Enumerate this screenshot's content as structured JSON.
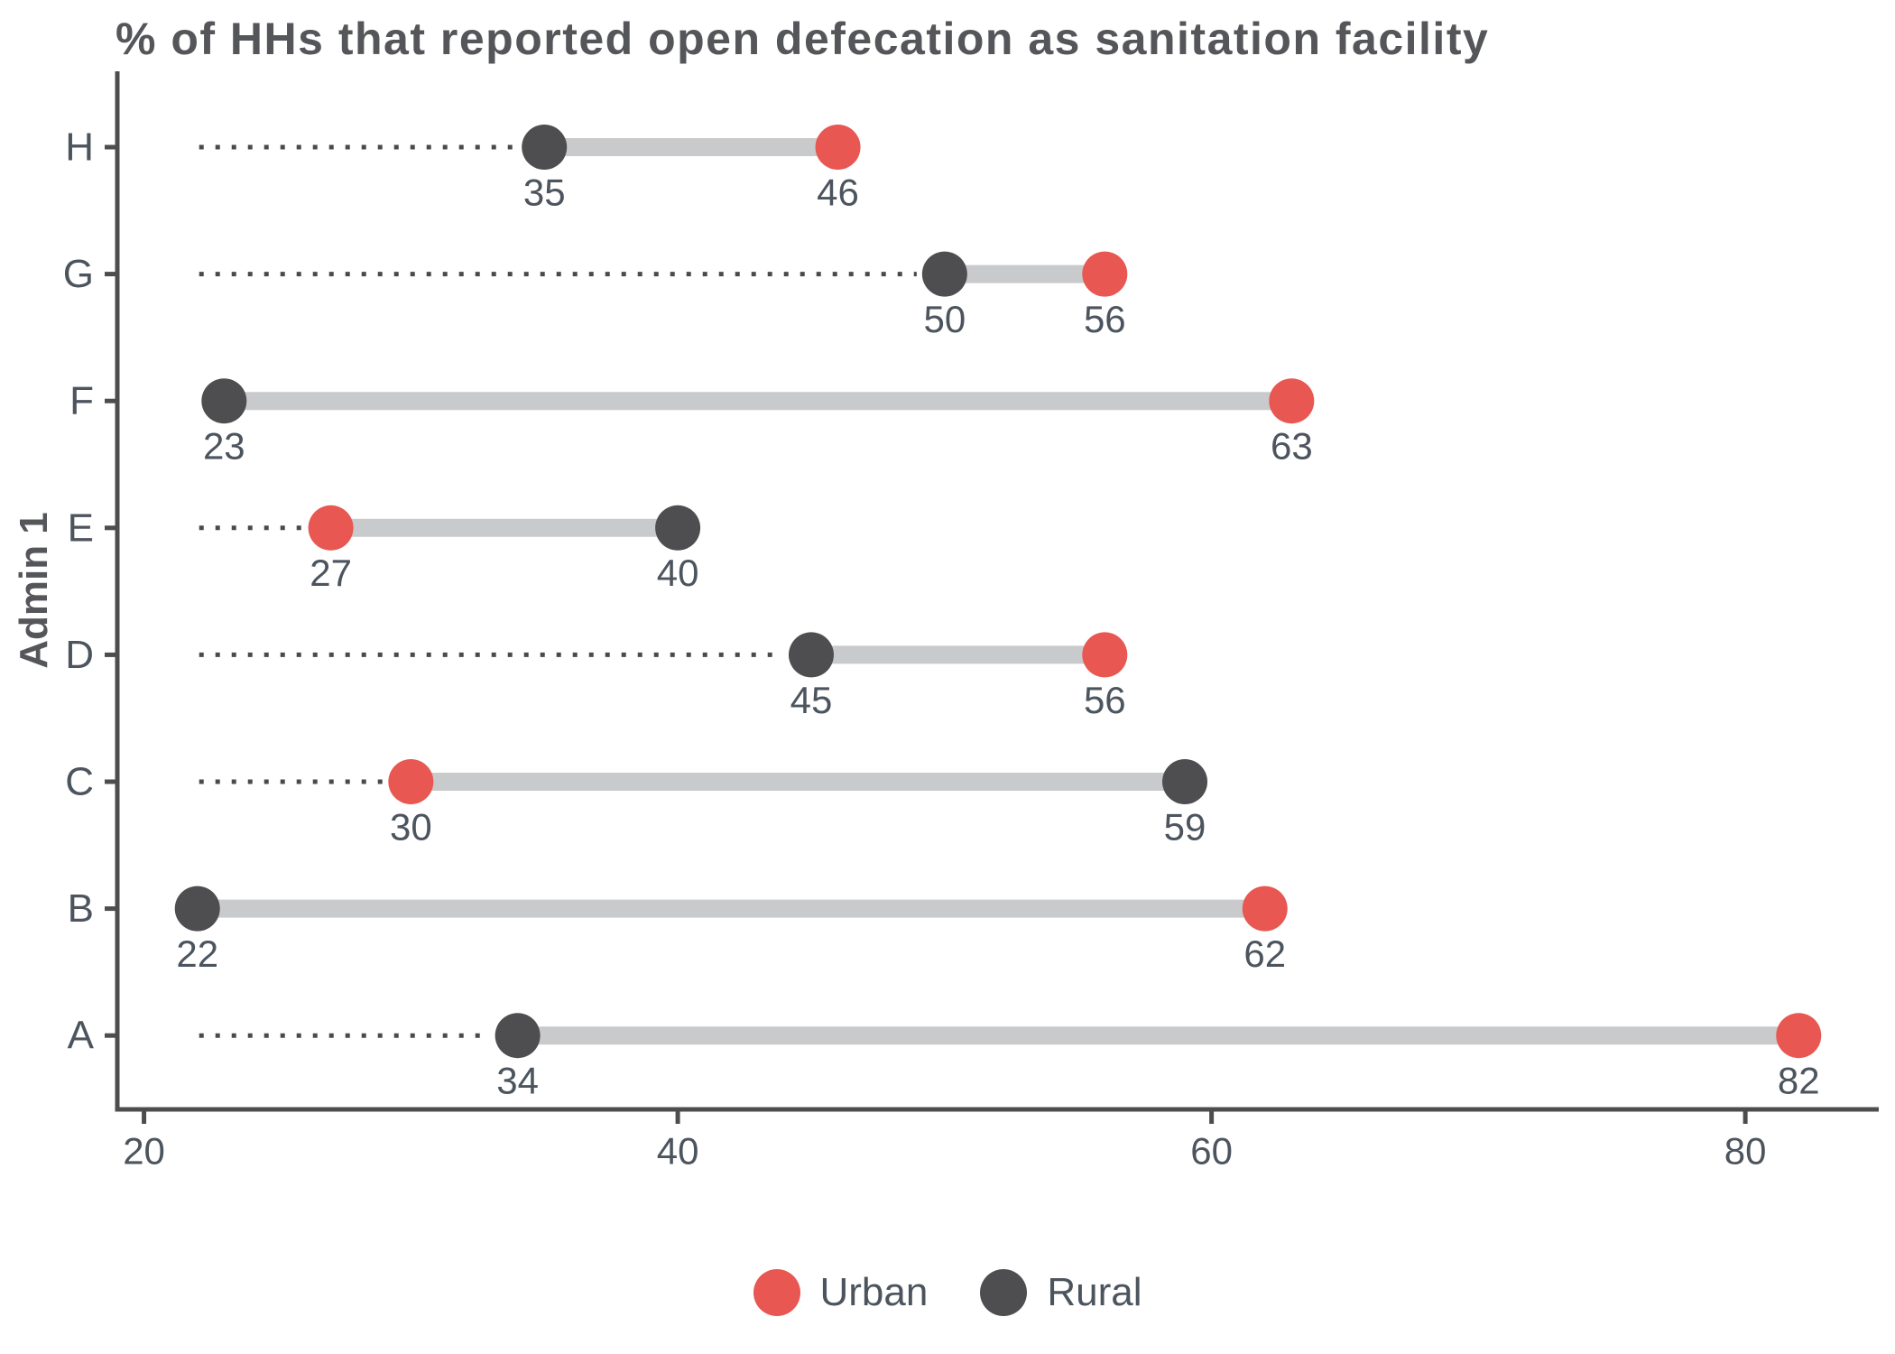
{
  "title": "% of HHs that reported open defecation as sanitation facility",
  "y_axis_label": "Admin 1",
  "legend": {
    "urban_label": "Urban",
    "rural_label": "Rural"
  },
  "colors": {
    "urban": "#E85751",
    "rural": "#4E4E50",
    "connector": "#C9CACB",
    "leader": "#4A4A4A",
    "axis": "#4D4D4D",
    "text": "#4C545E",
    "title": "#55565A"
  },
  "chart_data": {
    "type": "dumbbell",
    "title": "% of HHs that reported open defecation as sanitation facility",
    "xlabel": "",
    "ylabel": "Admin 1",
    "xlim": [
      19,
      85
    ],
    "x_ticks": [
      20,
      40,
      60,
      80
    ],
    "grid": false,
    "legend_position": "bottom",
    "series_names": [
      "Urban",
      "Rural"
    ],
    "rows_top_to_bottom": [
      {
        "category": "H",
        "rural": 35,
        "urban": 46
      },
      {
        "category": "G",
        "rural": 50,
        "urban": 56
      },
      {
        "category": "F",
        "rural": 23,
        "urban": 63
      },
      {
        "category": "E",
        "rural": 40,
        "urban": 27
      },
      {
        "category": "D",
        "rural": 45,
        "urban": 56
      },
      {
        "category": "C",
        "rural": 59,
        "urban": 30
      },
      {
        "category": "B",
        "rural": 22,
        "urban": 62
      },
      {
        "category": "A",
        "rural": 34,
        "urban": 82
      }
    ]
  }
}
